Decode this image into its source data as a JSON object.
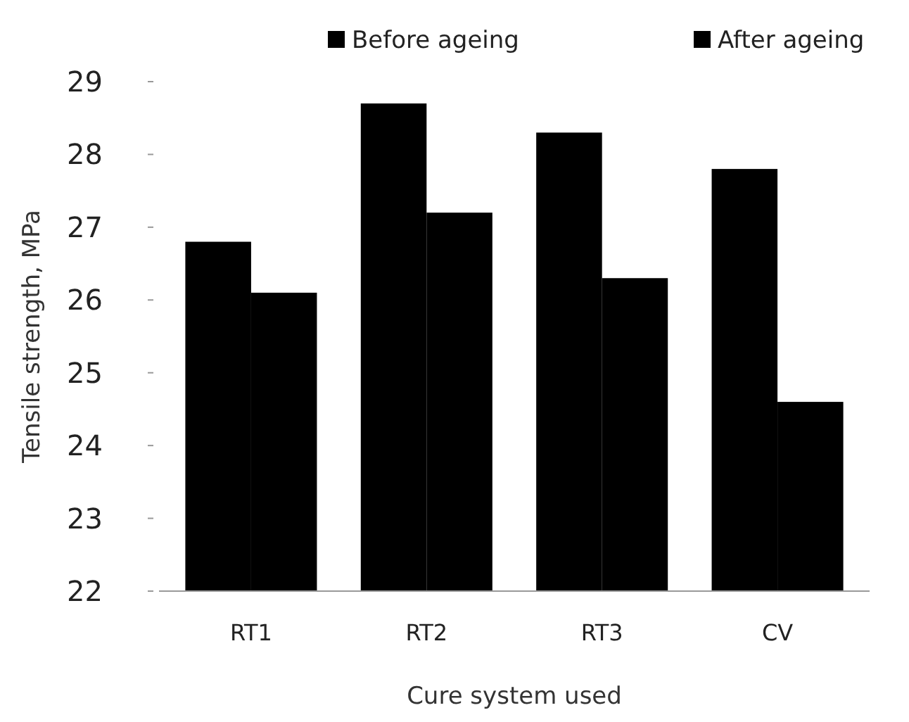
{
  "chart_data": {
    "type": "bar",
    "xlabel": "Cure system used",
    "ylabel": "Tensile strength, MPa",
    "categories": [
      "RT1",
      "RT2",
      "RT3",
      "CV"
    ],
    "series": [
      {
        "name": "Before ageing",
        "color": "#000000",
        "values": [
          26.8,
          28.7,
          28.3,
          27.8
        ]
      },
      {
        "name": "After ageing",
        "color": "#000000",
        "values": [
          26.1,
          27.2,
          26.3,
          24.6
        ]
      }
    ],
    "ylim": [
      22,
      29
    ],
    "yticks": [
      22,
      23,
      24,
      25,
      26,
      27,
      28,
      29
    ],
    "legend": "top",
    "grid": false
  }
}
